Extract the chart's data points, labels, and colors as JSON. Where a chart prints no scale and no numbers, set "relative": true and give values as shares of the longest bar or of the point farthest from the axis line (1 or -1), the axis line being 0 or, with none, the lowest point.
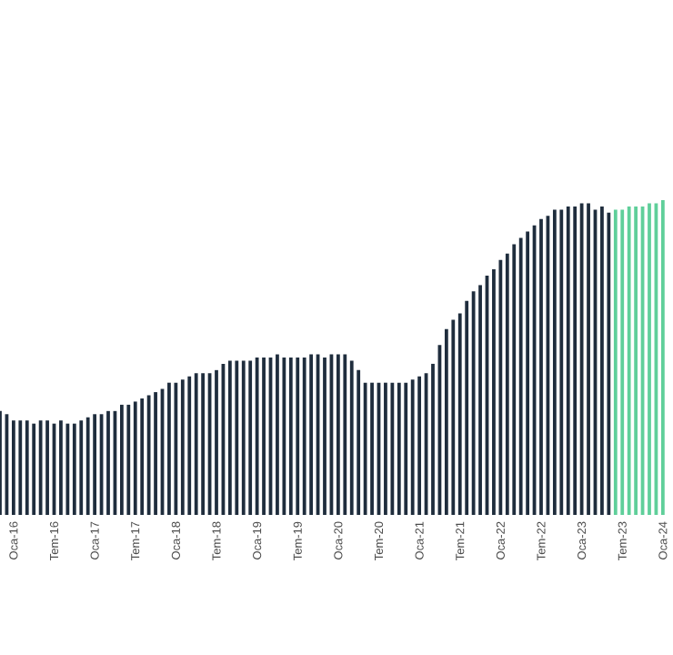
{
  "chart_data": {
    "type": "bar",
    "relative": true,
    "categories": [
      null,
      null,
      "Oca-16",
      null,
      null,
      null,
      null,
      null,
      "Tem-16",
      null,
      null,
      null,
      null,
      null,
      "Oca-17",
      null,
      null,
      null,
      null,
      null,
      "Tem-17",
      null,
      null,
      null,
      null,
      null,
      "Oca-18",
      null,
      null,
      null,
      null,
      null,
      "Tem-18",
      null,
      null,
      null,
      null,
      null,
      "Oca-19",
      null,
      null,
      null,
      null,
      null,
      "Tem-19",
      null,
      null,
      null,
      null,
      null,
      "Oca-20",
      null,
      null,
      null,
      null,
      null,
      "Tem-20",
      null,
      null,
      null,
      null,
      null,
      "Oca-21",
      null,
      null,
      null,
      null,
      null,
      "Tem-21",
      null,
      null,
      null,
      null,
      null,
      "Oca-22",
      null,
      null,
      null,
      null,
      null,
      "Tem-22",
      null,
      null,
      null,
      null,
      null,
      "Oca-23",
      null,
      null,
      null,
      null,
      null,
      "Tem-23",
      null,
      null,
      null,
      null,
      null,
      "Oca-24"
    ],
    "values": [
      0.33,
      0.32,
      0.3,
      0.3,
      0.3,
      0.29,
      0.3,
      0.3,
      0.29,
      0.3,
      0.29,
      0.29,
      0.3,
      0.31,
      0.32,
      0.32,
      0.33,
      0.33,
      0.35,
      0.35,
      0.36,
      0.37,
      0.38,
      0.39,
      0.4,
      0.42,
      0.42,
      0.43,
      0.44,
      0.45,
      0.45,
      0.45,
      0.46,
      0.48,
      0.49,
      0.49,
      0.49,
      0.49,
      0.5,
      0.5,
      0.5,
      0.51,
      0.5,
      0.5,
      0.5,
      0.5,
      0.51,
      0.51,
      0.5,
      0.51,
      0.51,
      0.51,
      0.49,
      0.46,
      0.42,
      0.42,
      0.42,
      0.42,
      0.42,
      0.42,
      0.42,
      0.43,
      0.44,
      0.45,
      0.48,
      0.54,
      0.59,
      0.62,
      0.64,
      0.68,
      0.71,
      0.73,
      0.76,
      0.78,
      0.81,
      0.83,
      0.86,
      0.88,
      0.9,
      0.92,
      0.94,
      0.95,
      0.97,
      0.97,
      0.98,
      0.98,
      0.99,
      0.99,
      0.97,
      0.98,
      0.96,
      0.97,
      0.97,
      0.98,
      0.98,
      0.98,
      0.99,
      0.99,
      1
    ],
    "colors": [
      "#1f2d3d",
      "#1f2d3d",
      "#1f2d3d",
      "#1f2d3d",
      "#1f2d3d",
      "#1f2d3d",
      "#1f2d3d",
      "#1f2d3d",
      "#1f2d3d",
      "#1f2d3d",
      "#1f2d3d",
      "#1f2d3d",
      "#1f2d3d",
      "#1f2d3d",
      "#1f2d3d",
      "#1f2d3d",
      "#1f2d3d",
      "#1f2d3d",
      "#1f2d3d",
      "#1f2d3d",
      "#1f2d3d",
      "#1f2d3d",
      "#1f2d3d",
      "#1f2d3d",
      "#1f2d3d",
      "#1f2d3d",
      "#1f2d3d",
      "#1f2d3d",
      "#1f2d3d",
      "#1f2d3d",
      "#1f2d3d",
      "#1f2d3d",
      "#1f2d3d",
      "#1f2d3d",
      "#1f2d3d",
      "#1f2d3d",
      "#1f2d3d",
      "#1f2d3d",
      "#1f2d3d",
      "#1f2d3d",
      "#1f2d3d",
      "#1f2d3d",
      "#1f2d3d",
      "#1f2d3d",
      "#1f2d3d",
      "#1f2d3d",
      "#1f2d3d",
      "#1f2d3d",
      "#1f2d3d",
      "#1f2d3d",
      "#1f2d3d",
      "#1f2d3d",
      "#1f2d3d",
      "#1f2d3d",
      "#1f2d3d",
      "#1f2d3d",
      "#1f2d3d",
      "#1f2d3d",
      "#1f2d3d",
      "#1f2d3d",
      "#1f2d3d",
      "#1f2d3d",
      "#1f2d3d",
      "#1f2d3d",
      "#1f2d3d",
      "#1f2d3d",
      "#1f2d3d",
      "#1f2d3d",
      "#1f2d3d",
      "#1f2d3d",
      "#1f2d3d",
      "#1f2d3d",
      "#1f2d3d",
      "#1f2d3d",
      "#1f2d3d",
      "#1f2d3d",
      "#1f2d3d",
      "#1f2d3d",
      "#1f2d3d",
      "#1f2d3d",
      "#1f2d3d",
      "#1f2d3d",
      "#1f2d3d",
      "#1f2d3d",
      "#1f2d3d",
      "#1f2d3d",
      "#1f2d3d",
      "#1f2d3d",
      "#1f2d3d",
      "#1f2d3d",
      "#1f2d3d",
      "#5fcf9a",
      "#5fcf9a",
      "#5fcf9a",
      "#5fcf9a",
      "#5fcf9a",
      "#5fcf9a",
      "#5fcf9a",
      "#5fcf9a"
    ]
  }
}
